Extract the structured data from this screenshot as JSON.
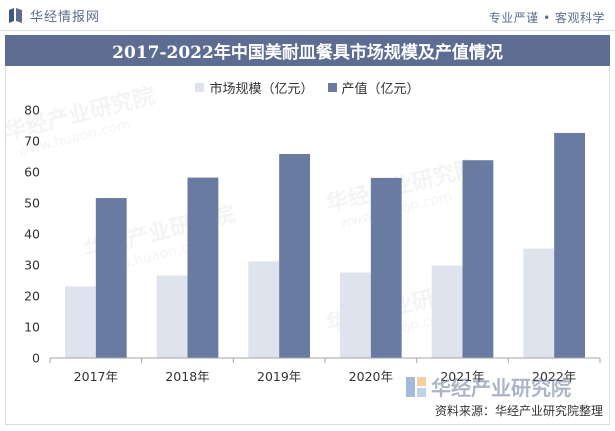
{
  "header": {
    "logo_text": "华经情报网",
    "tagline": "专业严谨 • 客观科学"
  },
  "watermark": {
    "brand": "华经产业研究院",
    "url": "www.huaon.com"
  },
  "chart_data": {
    "type": "bar",
    "title": "2017-2022年中国美耐皿餐具市场规模及产值情况",
    "xlabel": "",
    "ylabel": "",
    "categories": [
      "2017年",
      "2018年",
      "2019年",
      "2020年",
      "2021年",
      "2022年"
    ],
    "series": [
      {
        "name": "市场规模（亿元）",
        "values": [
          23.1,
          26.6,
          31.2,
          27.6,
          29.8,
          35.3
        ],
        "color": "#dfe3ed"
      },
      {
        "name": "产值（亿元）",
        "values": [
          51.6,
          58.2,
          65.8,
          58.1,
          63.8,
          72.6
        ],
        "color": "#6a7ba1"
      }
    ],
    "ylim": [
      0,
      80
    ],
    "yticks": [
      0,
      10,
      20,
      30,
      40,
      50,
      60,
      70,
      80
    ],
    "grid": false,
    "legend_position": "top-center"
  },
  "footer": {
    "source": "资料来源：华经产业研究院整理"
  },
  "colors": {
    "title_band": "#5c6d91",
    "brand_text": "#5d6d8e"
  }
}
